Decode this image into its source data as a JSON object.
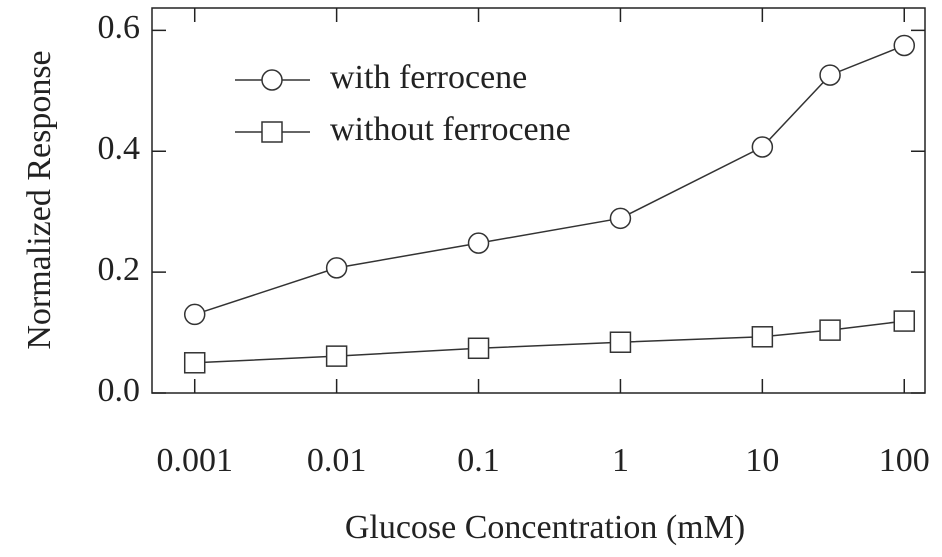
{
  "chart_data": {
    "type": "line",
    "xlabel": "Glucose Concentration (mM)",
    "ylabel": "Normalized Response",
    "xscale": "log",
    "xlim": [
      0.0005,
      140
    ],
    "xticks": [
      0.001,
      0.01,
      0.1,
      1,
      10,
      100
    ],
    "ylim": [
      0,
      0.637
    ],
    "yticks": [
      {
        "value": 0,
        "label": "0.0"
      },
      0.2,
      0.4,
      0.6
    ],
    "legend": "upper left",
    "series": [
      {
        "name": "with ferrocene",
        "marker": "circle",
        "color": "#333333",
        "x": [
          0.001,
          0.01,
          0.1,
          1,
          10,
          30,
          100
        ],
        "values": [
          0.13,
          0.207,
          0.248,
          0.289,
          0.407,
          0.526,
          0.575
        ]
      },
      {
        "name": "without ferrocene",
        "marker": "square",
        "color": "#333333",
        "x": [
          0.001,
          0.01,
          0.1,
          1,
          10,
          30,
          100
        ],
        "values": [
          0.05,
          0.061,
          0.074,
          0.084,
          0.093,
          0.104,
          0.119
        ]
      }
    ]
  }
}
